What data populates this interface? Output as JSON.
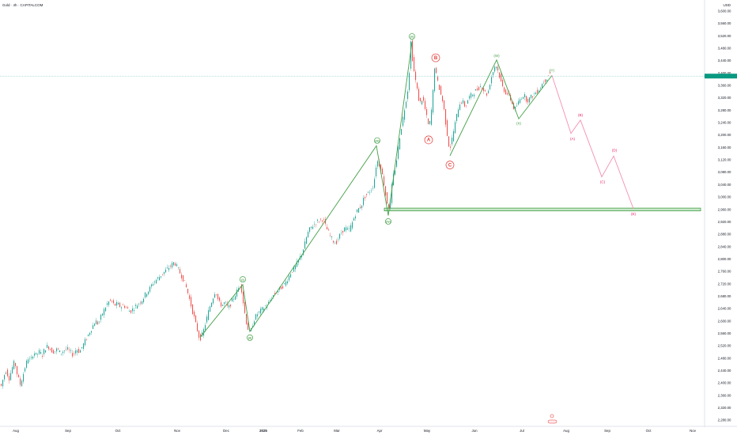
{
  "header": {
    "title": "Gold · 4h · CAPITALCOM",
    "currency": "USD"
  },
  "chart_data": {
    "type": "candlestick",
    "ylim": [
      2270,
      3610
    ],
    "y_ticks": [
      2280,
      2320,
      2360,
      2400,
      2440,
      2480,
      2520,
      2560,
      2600,
      2640,
      2680,
      2720,
      2760,
      2800,
      2840,
      2880,
      2920,
      2960,
      3000,
      3040,
      3080,
      3120,
      3160,
      3200,
      3240,
      3280,
      3320,
      3360,
      3400,
      3440,
      3480,
      3520,
      3560,
      3600
    ],
    "y_tick_labels": [
      "2,280.00",
      "2,320.00",
      "2,360.00",
      "2,400.00",
      "2,440.00",
      "2,480.00",
      "2,520.00",
      "2,560.00",
      "2,600.00",
      "2,640.00",
      "2,680.00",
      "2,720.00",
      "2,760.00",
      "2,800.00",
      "2,840.00",
      "2,880.00",
      "2,920.00",
      "2,960.00",
      "3,000.00",
      "3,040.00",
      "3,080.00",
      "3,120.00",
      "3,160.00",
      "3,200.00",
      "3,240.00",
      "3,280.00",
      "3,320.00",
      "3,360.00",
      "3,400.00",
      "3,440.00",
      "3,480.00",
      "3,520.00",
      "3,560.00",
      "3,600.00"
    ],
    "x_month_labels": [
      "Aug",
      "Sep",
      "Oct",
      "Nov",
      "Dec",
      "2025",
      "Feb",
      "Mar",
      "Apr",
      "May",
      "Jun",
      "Jul",
      "Aug",
      "Sep",
      "Oct",
      "Nov"
    ],
    "price_path": [
      [
        0,
        2400
      ],
      [
        3,
        2390
      ],
      [
        6,
        2420
      ],
      [
        9,
        2440
      ],
      [
        13,
        2415
      ],
      [
        17,
        2450
      ],
      [
        20,
        2470
      ],
      [
        23,
        2430
      ],
      [
        27,
        2395
      ],
      [
        30,
        2420
      ],
      [
        34,
        2460
      ],
      [
        37,
        2480
      ],
      [
        40,
        2470
      ],
      [
        44,
        2500
      ],
      [
        47,
        2490
      ],
      [
        51,
        2500
      ],
      [
        55,
        2490
      ],
      [
        58,
        2510
      ],
      [
        62,
        2520
      ],
      [
        66,
        2505
      ],
      [
        70,
        2500
      ],
      [
        74,
        2510
      ],
      [
        78,
        2495
      ],
      [
        82,
        2505
      ],
      [
        86,
        2510
      ],
      [
        90,
        2500
      ],
      [
        94,
        2490
      ],
      [
        98,
        2510
      ],
      [
        102,
        2500
      ],
      [
        106,
        2520
      ],
      [
        110,
        2540
      ],
      [
        114,
        2560
      ],
      [
        118,
        2580
      ],
      [
        122,
        2600
      ],
      [
        126,
        2590
      ],
      [
        130,
        2620
      ],
      [
        134,
        2640
      ],
      [
        138,
        2660
      ],
      [
        142,
        2665
      ],
      [
        146,
        2650
      ],
      [
        150,
        2655
      ],
      [
        154,
        2645
      ],
      [
        158,
        2650
      ],
      [
        162,
        2640
      ],
      [
        166,
        2630
      ],
      [
        170,
        2640
      ],
      [
        174,
        2650
      ],
      [
        178,
        2660
      ],
      [
        182,
        2670
      ],
      [
        186,
        2690
      ],
      [
        190,
        2700
      ],
      [
        194,
        2720
      ],
      [
        198,
        2730
      ],
      [
        202,
        2740
      ],
      [
        206,
        2750
      ],
      [
        210,
        2760
      ],
      [
        214,
        2770
      ],
      [
        218,
        2780
      ],
      [
        222,
        2790
      ],
      [
        226,
        2770
      ],
      [
        230,
        2750
      ],
      [
        234,
        2730
      ],
      [
        238,
        2700
      ],
      [
        242,
        2660
      ],
      [
        246,
        2620
      ],
      [
        250,
        2580
      ],
      [
        254,
        2540
      ],
      [
        258,
        2560
      ],
      [
        262,
        2600
      ],
      [
        266,
        2640
      ],
      [
        270,
        2670
      ],
      [
        274,
        2700
      ],
      [
        278,
        2660
      ],
      [
        282,
        2650
      ],
      [
        286,
        2660
      ],
      [
        290,
        2640
      ],
      [
        294,
        2660
      ],
      [
        298,
        2680
      ],
      [
        302,
        2700
      ],
      [
        306,
        2720
      ],
      [
        310,
        2640
      ],
      [
        314,
        2580
      ],
      [
        318,
        2560
      ],
      [
        322,
        2600
      ],
      [
        326,
        2620
      ],
      [
        330,
        2630
      ],
      [
        334,
        2640
      ],
      [
        338,
        2650
      ],
      [
        342,
        2660
      ],
      [
        346,
        2680
      ],
      [
        350,
        2690
      ],
      [
        354,
        2700
      ],
      [
        358,
        2710
      ],
      [
        362,
        2720
      ],
      [
        366,
        2740
      ],
      [
        370,
        2760
      ],
      [
        374,
        2770
      ],
      [
        378,
        2790
      ],
      [
        382,
        2810
      ],
      [
        386,
        2840
      ],
      [
        390,
        2880
      ],
      [
        394,
        2900
      ],
      [
        398,
        2910
      ],
      [
        402,
        2920
      ],
      [
        406,
        2925
      ],
      [
        410,
        2930
      ],
      [
        414,
        2900
      ],
      [
        418,
        2880
      ],
      [
        422,
        2860
      ],
      [
        426,
        2850
      ],
      [
        430,
        2870
      ],
      [
        434,
        2890
      ],
      [
        438,
        2900
      ],
      [
        442,
        2890
      ],
      [
        446,
        2910
      ],
      [
        450,
        2940
      ],
      [
        454,
        2960
      ],
      [
        458,
        2970
      ],
      [
        462,
        3000
      ],
      [
        466,
        3010
      ],
      [
        470,
        3020
      ],
      [
        474,
        3040
      ],
      [
        478,
        3120
      ],
      [
        482,
        3100
      ],
      [
        486,
        3060
      ],
      [
        490,
        2990
      ],
      [
        494,
        2960
      ],
      [
        498,
        3060
      ],
      [
        502,
        3100
      ],
      [
        506,
        3180
      ],
      [
        510,
        3240
      ],
      [
        514,
        3300
      ],
      [
        518,
        3360
      ],
      [
        521,
        3500
      ],
      [
        524,
        3420
      ],
      [
        528,
        3360
      ],
      [
        532,
        3300
      ],
      [
        536,
        3320
      ],
      [
        540,
        3270
      ],
      [
        544,
        3220
      ],
      [
        548,
        3300
      ],
      [
        551,
        3420
      ],
      [
        554,
        3380
      ],
      [
        558,
        3340
      ],
      [
        562,
        3300
      ],
      [
        566,
        3220
      ],
      [
        570,
        3150
      ],
      [
        574,
        3200
      ],
      [
        578,
        3250
      ],
      [
        582,
        3300
      ],
      [
        586,
        3310
      ],
      [
        590,
        3290
      ],
      [
        594,
        3320
      ],
      [
        598,
        3330
      ],
      [
        602,
        3340
      ],
      [
        606,
        3350
      ],
      [
        610,
        3360
      ],
      [
        614,
        3340
      ],
      [
        618,
        3330
      ],
      [
        622,
        3380
      ],
      [
        628,
        3430
      ],
      [
        632,
        3400
      ],
      [
        636,
        3360
      ],
      [
        640,
        3340
      ],
      [
        644,
        3330
      ],
      [
        648,
        3310
      ],
      [
        652,
        3280
      ],
      [
        656,
        3300
      ],
      [
        660,
        3320
      ],
      [
        664,
        3330
      ],
      [
        668,
        3310
      ],
      [
        672,
        3320
      ],
      [
        676,
        3330
      ],
      [
        680,
        3340
      ],
      [
        684,
        3350
      ],
      [
        688,
        3370
      ],
      [
        692,
        3380
      ],
      [
        696,
        3400
      ]
    ],
    "support_zone": {
      "from": 2955,
      "to": 2964
    },
    "current_price": 3390,
    "main_wave": [
      [
        253,
        2547
      ],
      [
        307,
        2717
      ],
      [
        316,
        2566
      ],
      [
        476,
        3165
      ],
      [
        491,
        2940
      ],
      [
        521,
        3500
      ]
    ],
    "main_wave_labels": [
      {
        "x": 307,
        "y": 2734,
        "text": "(i)"
      },
      {
        "x": 316,
        "y": 2546,
        "text": "(ii)"
      },
      {
        "x": 477,
        "y": 3182,
        "text": "(iii)"
      },
      {
        "x": 491,
        "y": 2921,
        "text": "(iv)"
      },
      {
        "x": 521,
        "y": 3518,
        "text": "(v)"
      }
    ],
    "red_abc_labels": [
      {
        "x": 551,
        "y": 3449,
        "text": "B"
      },
      {
        "x": 542,
        "y": 3184,
        "text": "A"
      },
      {
        "x": 569,
        "y": 3103,
        "text": "C"
      }
    ],
    "green_wxy": [
      [
        569,
        3133
      ],
      [
        628,
        3442
      ],
      [
        656,
        3252
      ],
      [
        698,
        3392
      ]
    ],
    "green_wxy_labels": [
      {
        "x": 628,
        "y": 3456,
        "text": "(W)"
      },
      {
        "x": 656,
        "y": 3237,
        "text": "(X)"
      },
      {
        "x": 698,
        "y": 3409,
        "text": "(Y)"
      }
    ],
    "projection": [
      [
        698,
        3392
      ],
      [
        722,
        3205
      ],
      [
        734,
        3248
      ],
      [
        761,
        3065
      ],
      [
        776,
        3132
      ],
      [
        801,
        2962
      ]
    ],
    "projection_labels": [
      {
        "x": 724,
        "y": 3188,
        "text": "(A)"
      },
      {
        "x": 734,
        "y": 3264,
        "text": "(B)"
      },
      {
        "x": 762,
        "y": 3048,
        "text": "(C)"
      },
      {
        "x": 777,
        "y": 3150,
        "text": "(D)"
      },
      {
        "x": 801,
        "y": 2945,
        "text": "(E)"
      }
    ],
    "grid": false,
    "legend": "none"
  }
}
